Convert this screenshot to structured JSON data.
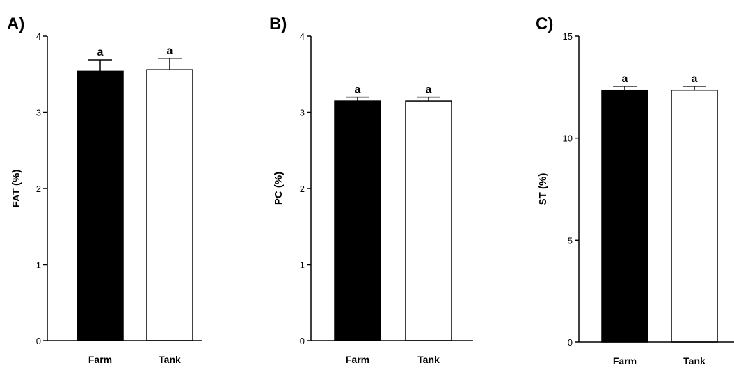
{
  "chart_data": [
    {
      "type": "bar",
      "panel": "A)",
      "categories": [
        "Farm",
        "Tank"
      ],
      "values": [
        3.54,
        3.56
      ],
      "errors": [
        0.15,
        0.15
      ],
      "significance": [
        "a",
        "a"
      ],
      "bar_colors": [
        "#000000",
        "#ffffff"
      ],
      "ylabel": "FAT (%)",
      "xlabel": "",
      "ylim": [
        0,
        4
      ],
      "yticks": [
        "0",
        "1",
        "2",
        "3",
        "4"
      ],
      "grid": false
    },
    {
      "type": "bar",
      "panel": "B)",
      "categories": [
        "Farm",
        "Tank"
      ],
      "values": [
        3.15,
        3.15
      ],
      "errors": [
        0.05,
        0.05
      ],
      "significance": [
        "a",
        "a"
      ],
      "bar_colors": [
        "#000000",
        "#ffffff"
      ],
      "ylabel": "PC (%)",
      "xlabel": "",
      "ylim": [
        0,
        4
      ],
      "yticks": [
        "0",
        "1",
        "2",
        "3",
        "4"
      ],
      "grid": false
    },
    {
      "type": "bar",
      "panel": "C)",
      "categories": [
        "Farm",
        "Tank"
      ],
      "values": [
        12.35,
        12.35
      ],
      "errors": [
        0.2,
        0.2
      ],
      "significance": [
        "a",
        "a"
      ],
      "bar_colors": [
        "#000000",
        "#ffffff"
      ],
      "ylabel": "ST (%)",
      "xlabel": "",
      "ylim": [
        0,
        15
      ],
      "yticks": [
        "0",
        "5",
        "10",
        "15"
      ],
      "grid": false
    }
  ]
}
